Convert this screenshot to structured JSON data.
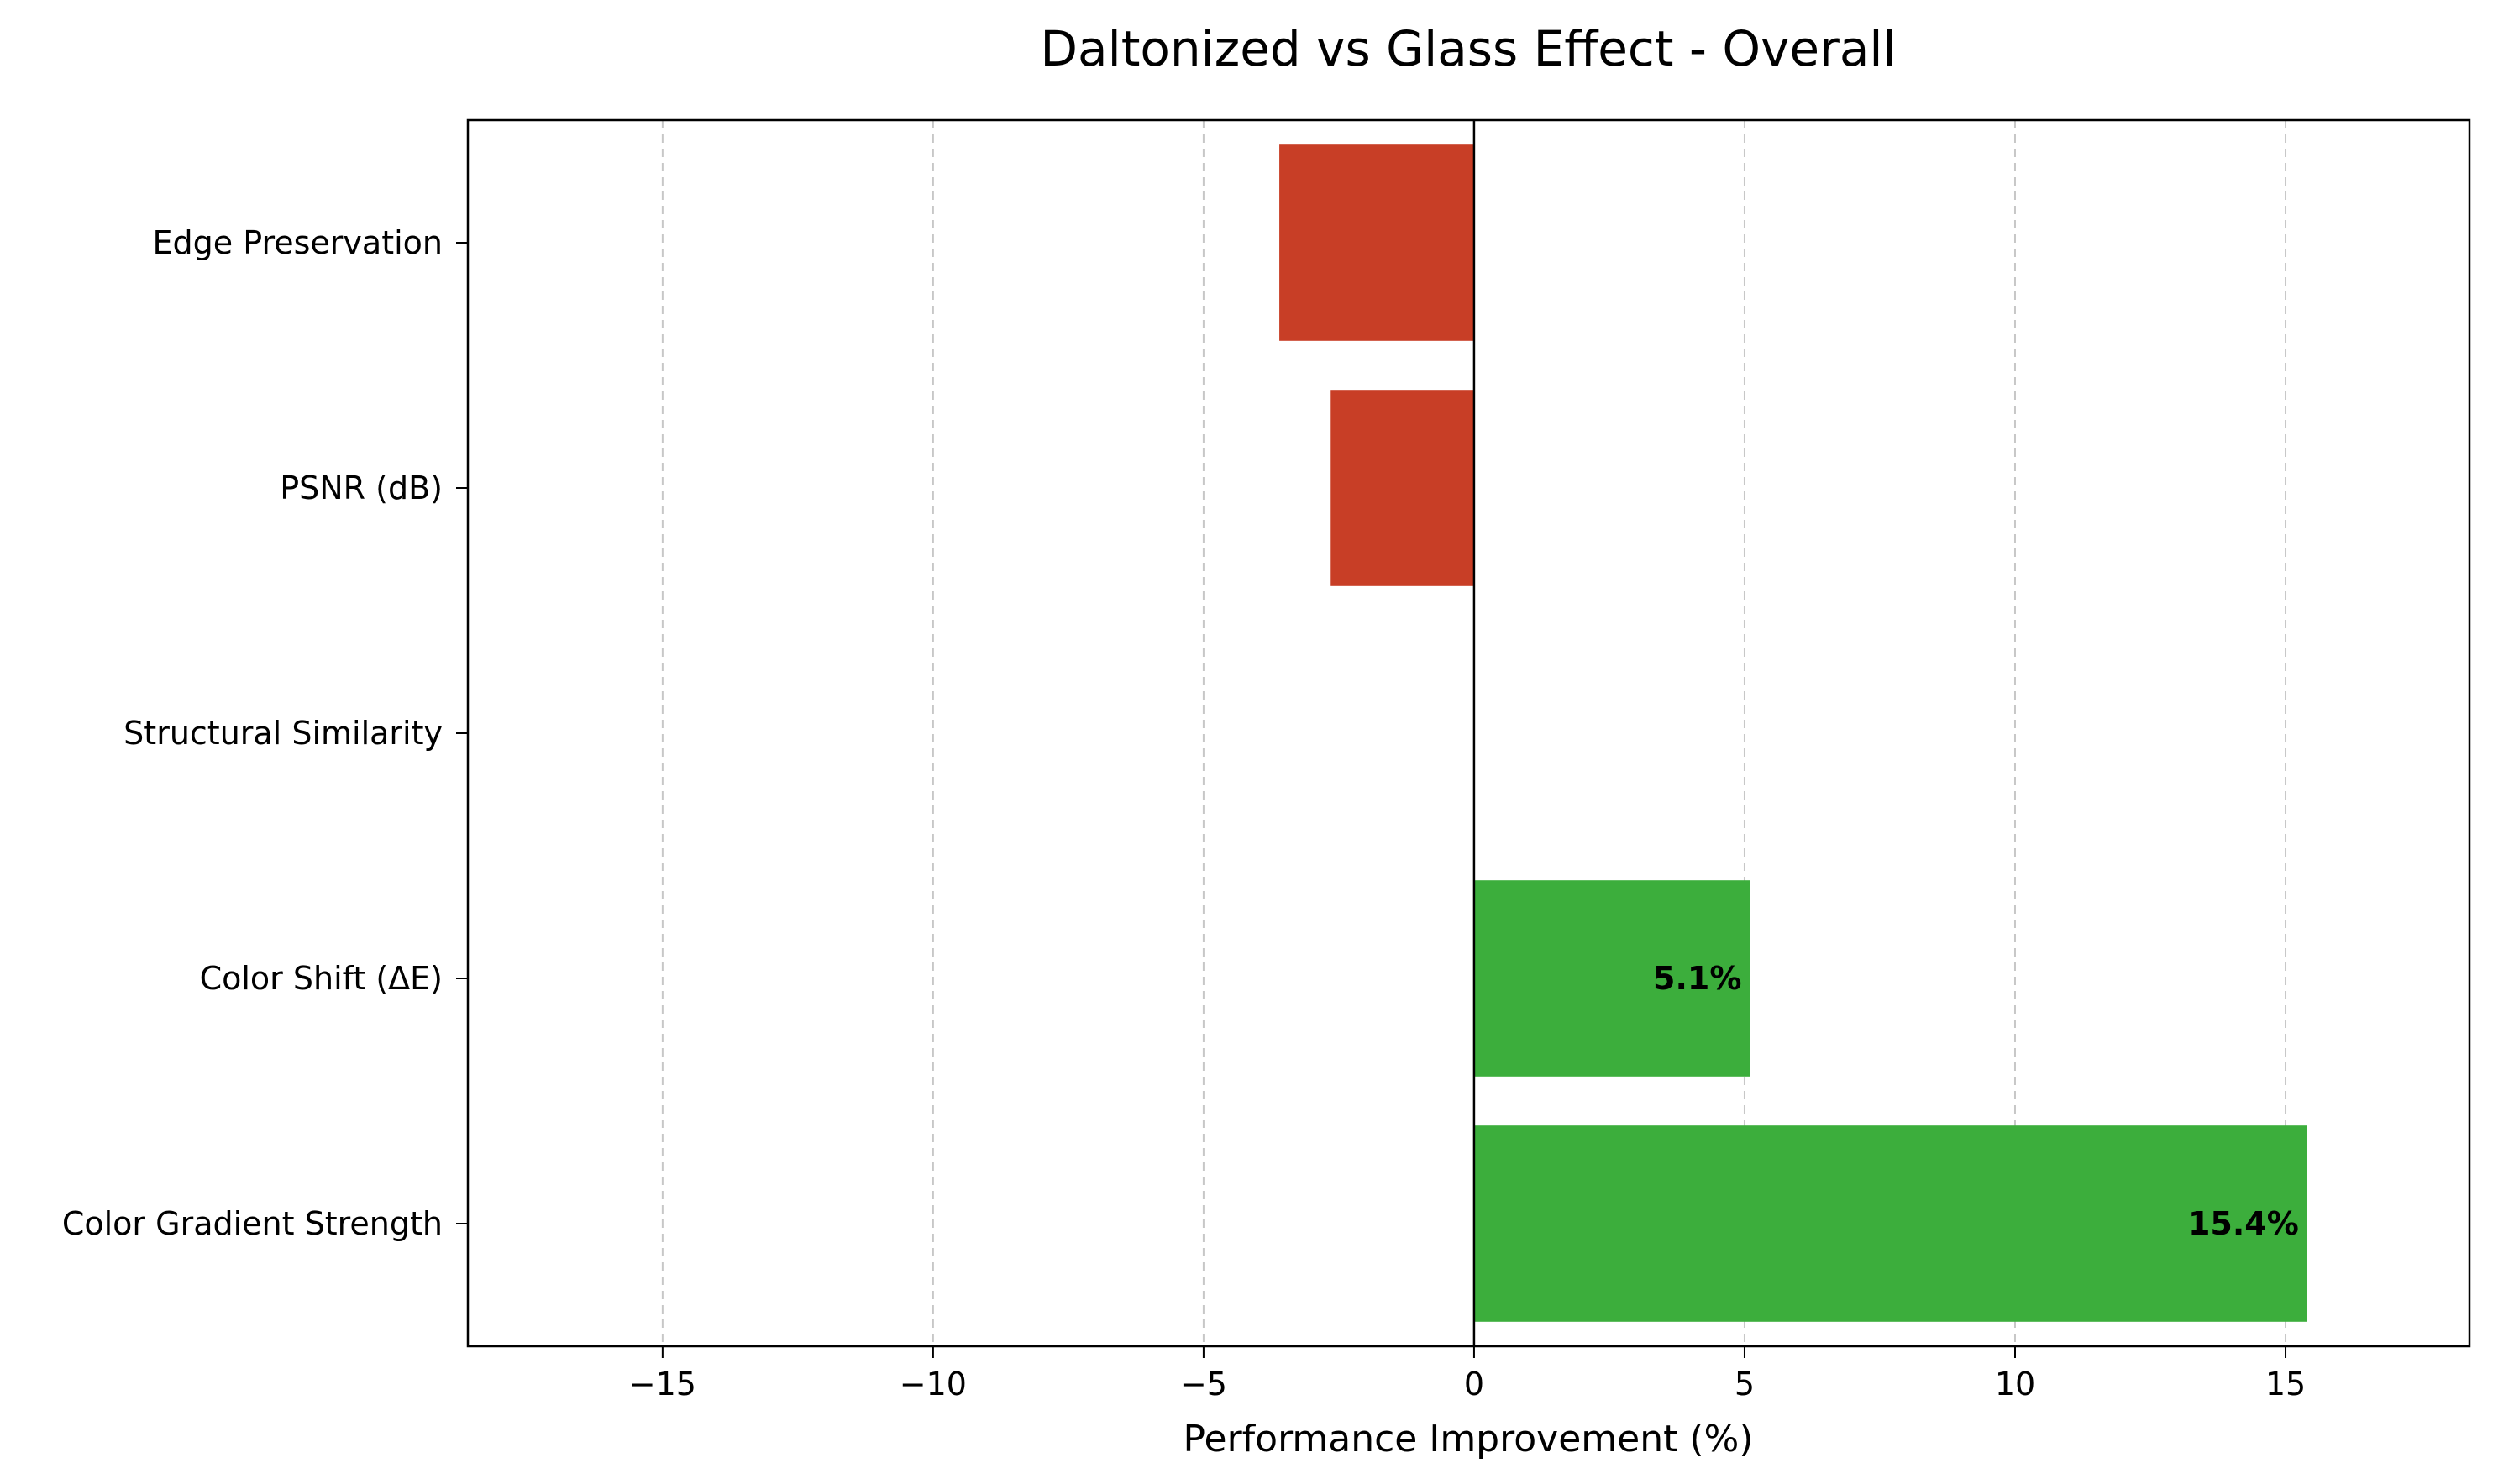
{
  "chart_data": {
    "type": "bar",
    "orientation": "horizontal",
    "title": "Daltonized vs Glass Effect - Overall",
    "xlabel": "Performance Improvement (%)",
    "ylabel": "",
    "xlim": [
      -18.6,
      18.4
    ],
    "xticks": [
      -15,
      -10,
      -5,
      0,
      5,
      10,
      15
    ],
    "xtick_labels": [
      "−15",
      "−10",
      "−5",
      "0",
      "5",
      "10",
      "15"
    ],
    "grid": {
      "x": true,
      "y": false,
      "style": "dashed"
    },
    "categories": [
      "Edge Preservation",
      "PSNR (dB)",
      "Structural Similarity",
      "Color Shift (ΔE)",
      "Color Gradient Strength"
    ],
    "values": [
      -3.6,
      -2.65,
      0,
      5.1,
      15.4
    ],
    "data_labels": [
      "",
      "",
      "",
      "5.1%",
      "15.4%"
    ],
    "colors": {
      "positive": "#3cae3c",
      "negative": "#c83e26"
    }
  }
}
